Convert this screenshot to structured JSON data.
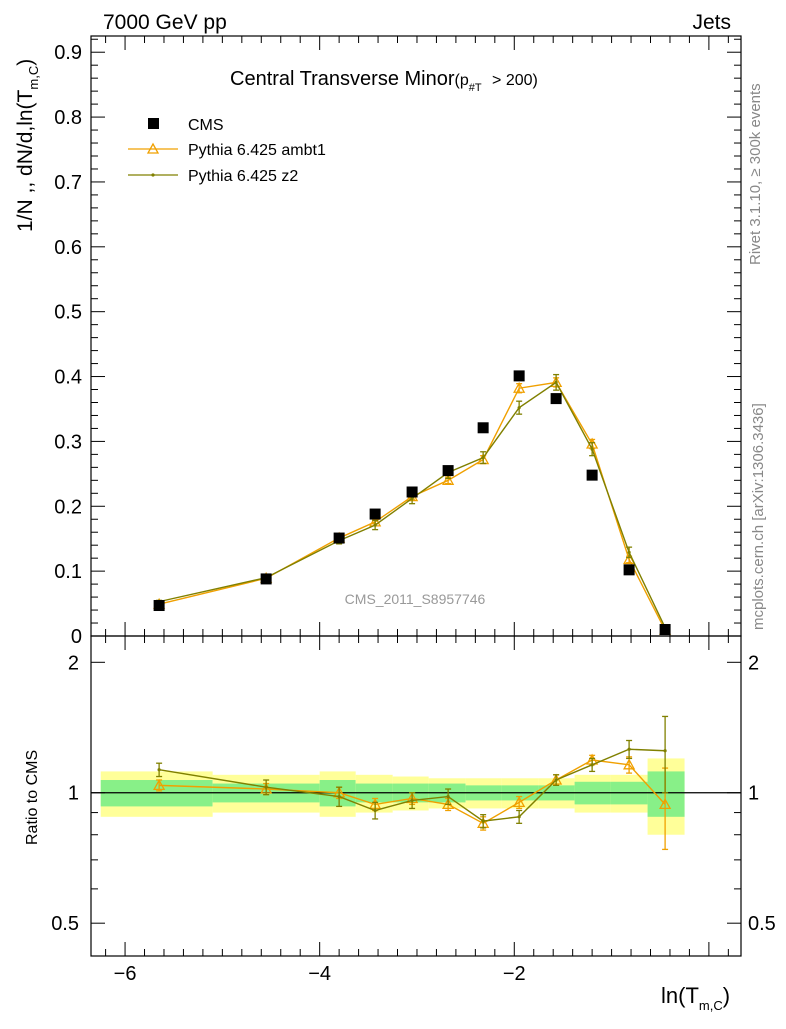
{
  "header": {
    "left": "7000 GeV pp",
    "right": "Jets"
  },
  "side_text": {
    "rivet": "Rivet 3.1.10, ≥ 300k events",
    "mcplots": "mcplots.cern.ch [arXiv:1306.3436]"
  },
  "watermark": "CMS_2011_S8957746",
  "chart_data": {
    "type": "line",
    "title": "Central Transverse Minor",
    "title_cut": "(p",
    "title_cut_sub": "#T",
    "title_cut_tail": " > 200)",
    "ylabel": "1/N ,, dN/d,ln(T",
    "ylabel_sub": "m,C",
    "ylabel_tail": ")",
    "xlabel": "ln(T",
    "xlabel_sub": "m,C",
    "xlabel_tail": ")",
    "ratio_ylabel": "Ratio to CMS",
    "xlim": [
      -6.35,
      0.33
    ],
    "ylim": [
      0,
      0.925
    ],
    "ratio_ylim": [
      0.42,
      2.3
    ],
    "ratio_log": true,
    "x_ticks": [
      -6,
      -4,
      -2
    ],
    "x_tick_labels": [
      "−6",
      "−4",
      "−2"
    ],
    "y_ticks": [
      0.1,
      0.2,
      0.3,
      0.4,
      0.5,
      0.6,
      0.7,
      0.8,
      0.9
    ],
    "y_tick_labels": [
      "0.1",
      "0.2",
      "0.3",
      "0.4",
      "0.5",
      "0.6",
      "0.7",
      "0.8",
      "0.9"
    ],
    "y_zero_label": "0",
    "ratio_ticks": [
      0.5,
      1,
      2
    ],
    "ratio_tick_labels": [
      "0.5",
      "1",
      "2"
    ],
    "legend_position": "top-left",
    "x": [
      -5.65,
      -4.55,
      -3.8,
      -3.43,
      -3.05,
      -2.68,
      -2.32,
      -1.95,
      -1.57,
      -1.2,
      -0.82,
      -0.45
    ],
    "bins": [
      [
        -6.25,
        -5.1
      ],
      [
        -5.1,
        -4.0
      ],
      [
        -4.0,
        -3.63
      ],
      [
        -3.63,
        -3.25
      ],
      [
        -3.25,
        -2.88
      ],
      [
        -2.88,
        -2.5
      ],
      [
        -2.5,
        -2.13
      ],
      [
        -2.13,
        -1.75
      ],
      [
        -1.75,
        -1.38
      ],
      [
        -1.38,
        -1.01
      ],
      [
        -1.01,
        -0.63
      ],
      [
        -0.63,
        -0.25
      ]
    ],
    "series": [
      {
        "name": "CMS",
        "color": "#000000",
        "marker": "square",
        "values": [
          0.047,
          0.088,
          0.151,
          0.188,
          0.222,
          0.255,
          0.321,
          0.401,
          0.366,
          0.248,
          0.102,
          0.01
        ]
      },
      {
        "name": "Pythia 6.425 ambt1",
        "color": "#f0a000",
        "marker": "triangle",
        "values": [
          0.049,
          0.089,
          0.151,
          0.176,
          0.215,
          0.24,
          0.272,
          0.382,
          0.391,
          0.296,
          0.118,
          0.009
        ],
        "errors": [
          0.001,
          0.002,
          0.003,
          0.003,
          0.004,
          0.005,
          0.006,
          0.007,
          0.007,
          0.007,
          0.005,
          0.002
        ],
        "ratio": [
          1.04,
          1.02,
          1.0,
          0.94,
          0.97,
          0.94,
          0.85,
          0.95,
          1.07,
          1.19,
          1.16,
          0.94
        ],
        "ratio_errors": [
          0.03,
          0.03,
          0.03,
          0.03,
          0.03,
          0.03,
          0.03,
          0.03,
          0.03,
          0.03,
          0.05,
          0.2
        ]
      },
      {
        "name": "Pythia 6.425 z2",
        "color": "#808000",
        "marker": "dot",
        "values": [
          0.053,
          0.09,
          0.147,
          0.171,
          0.212,
          0.252,
          0.275,
          0.352,
          0.391,
          0.288,
          0.129,
          0.013
        ],
        "errors": [
          0.002,
          0.003,
          0.005,
          0.007,
          0.008,
          0.009,
          0.009,
          0.01,
          0.012,
          0.01,
          0.008,
          0.003
        ],
        "ratio": [
          1.13,
          1.03,
          0.98,
          0.91,
          0.96,
          0.98,
          0.86,
          0.88,
          1.07,
          1.16,
          1.26,
          1.25
        ],
        "ratio_errors": [
          0.04,
          0.04,
          0.05,
          0.04,
          0.04,
          0.04,
          0.03,
          0.03,
          0.03,
          0.04,
          0.06,
          0.25
        ]
      }
    ],
    "data_band_inner": [
      0.07,
      0.05,
      0.07,
      0.05,
      0.05,
      0.05,
      0.04,
      0.04,
      0.04,
      0.06,
      0.06,
      0.12
    ],
    "data_band_outer": [
      0.12,
      0.1,
      0.12,
      0.1,
      0.09,
      0.08,
      0.08,
      0.08,
      0.08,
      0.1,
      0.1,
      0.2
    ],
    "colors": {
      "inner_band": "#88f088",
      "outer_band": "#ffff99"
    }
  }
}
